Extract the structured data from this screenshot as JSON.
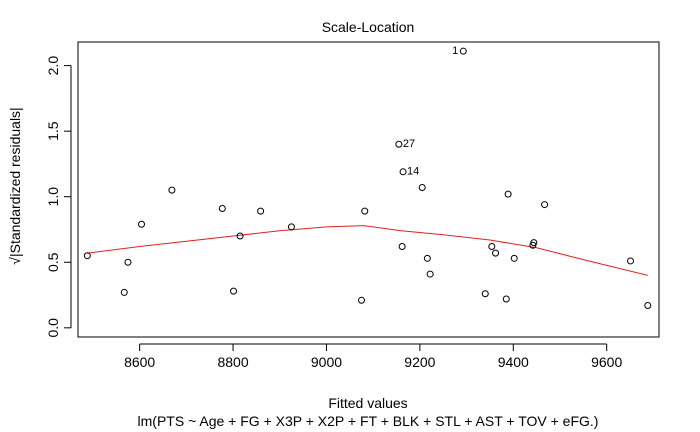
{
  "chart_data": {
    "type": "scatter",
    "title": "Scale-Location",
    "xlabel": "Fitted values",
    "ylabel": "√|Standardized residuals|",
    "subtitle": "lm(PTS ~ Age + FG + X3P + X2P + FT + BLK + STL + AST + TOV + eFG.)",
    "xlim": [
      8468,
      9712
    ],
    "ylim": [
      -0.07,
      2.18
    ],
    "x_ticks": [
      8600,
      8800,
      9000,
      9200,
      9400,
      9600
    ],
    "y_ticks": [
      0.0,
      0.5,
      1.0,
      1.5,
      2.0
    ],
    "x_tick_labels": [
      "8600",
      "8800",
      "9000",
      "9200",
      "9400",
      "9600"
    ],
    "y_tick_labels": [
      "0.0",
      "0.5",
      "1.0",
      "1.5",
      "2.0"
    ],
    "grid": false,
    "point_color": "#000000",
    "smooth_color": "#dd2222",
    "points": [
      {
        "x": 8488,
        "y": 0.55
      },
      {
        "x": 8567,
        "y": 0.27
      },
      {
        "x": 8575,
        "y": 0.5
      },
      {
        "x": 8604,
        "y": 0.79
      },
      {
        "x": 8669,
        "y": 1.05
      },
      {
        "x": 8777,
        "y": 0.91
      },
      {
        "x": 8801,
        "y": 0.28
      },
      {
        "x": 8815,
        "y": 0.7
      },
      {
        "x": 8859,
        "y": 0.89
      },
      {
        "x": 8925,
        "y": 0.77
      },
      {
        "x": 9075,
        "y": 0.21
      },
      {
        "x": 9082,
        "y": 0.89
      },
      {
        "x": 9155,
        "y": 1.4,
        "label": "27"
      },
      {
        "x": 9162,
        "y": 0.62
      },
      {
        "x": 9164,
        "y": 1.19,
        "label": "14"
      },
      {
        "x": 9205,
        "y": 1.07
      },
      {
        "x": 9216,
        "y": 0.53
      },
      {
        "x": 9222,
        "y": 0.41
      },
      {
        "x": 9293,
        "y": 2.11,
        "label": "1"
      },
      {
        "x": 9340,
        "y": 0.26
      },
      {
        "x": 9354,
        "y": 0.62
      },
      {
        "x": 9362,
        "y": 0.57
      },
      {
        "x": 9385,
        "y": 0.22
      },
      {
        "x": 9389,
        "y": 1.02
      },
      {
        "x": 9402,
        "y": 0.53
      },
      {
        "x": 9442,
        "y": 0.63
      },
      {
        "x": 9444,
        "y": 0.65
      },
      {
        "x": 9467,
        "y": 0.94
      },
      {
        "x": 9651,
        "y": 0.51
      },
      {
        "x": 9688,
        "y": 0.17
      }
    ],
    "smooth": {
      "x": [
        8488,
        8600,
        8700,
        8800,
        8900,
        9000,
        9080,
        9160,
        9250,
        9350,
        9450,
        9550,
        9688
      ],
      "y": [
        0.57,
        0.62,
        0.66,
        0.7,
        0.74,
        0.77,
        0.78,
        0.74,
        0.71,
        0.67,
        0.61,
        0.52,
        0.4
      ]
    }
  }
}
